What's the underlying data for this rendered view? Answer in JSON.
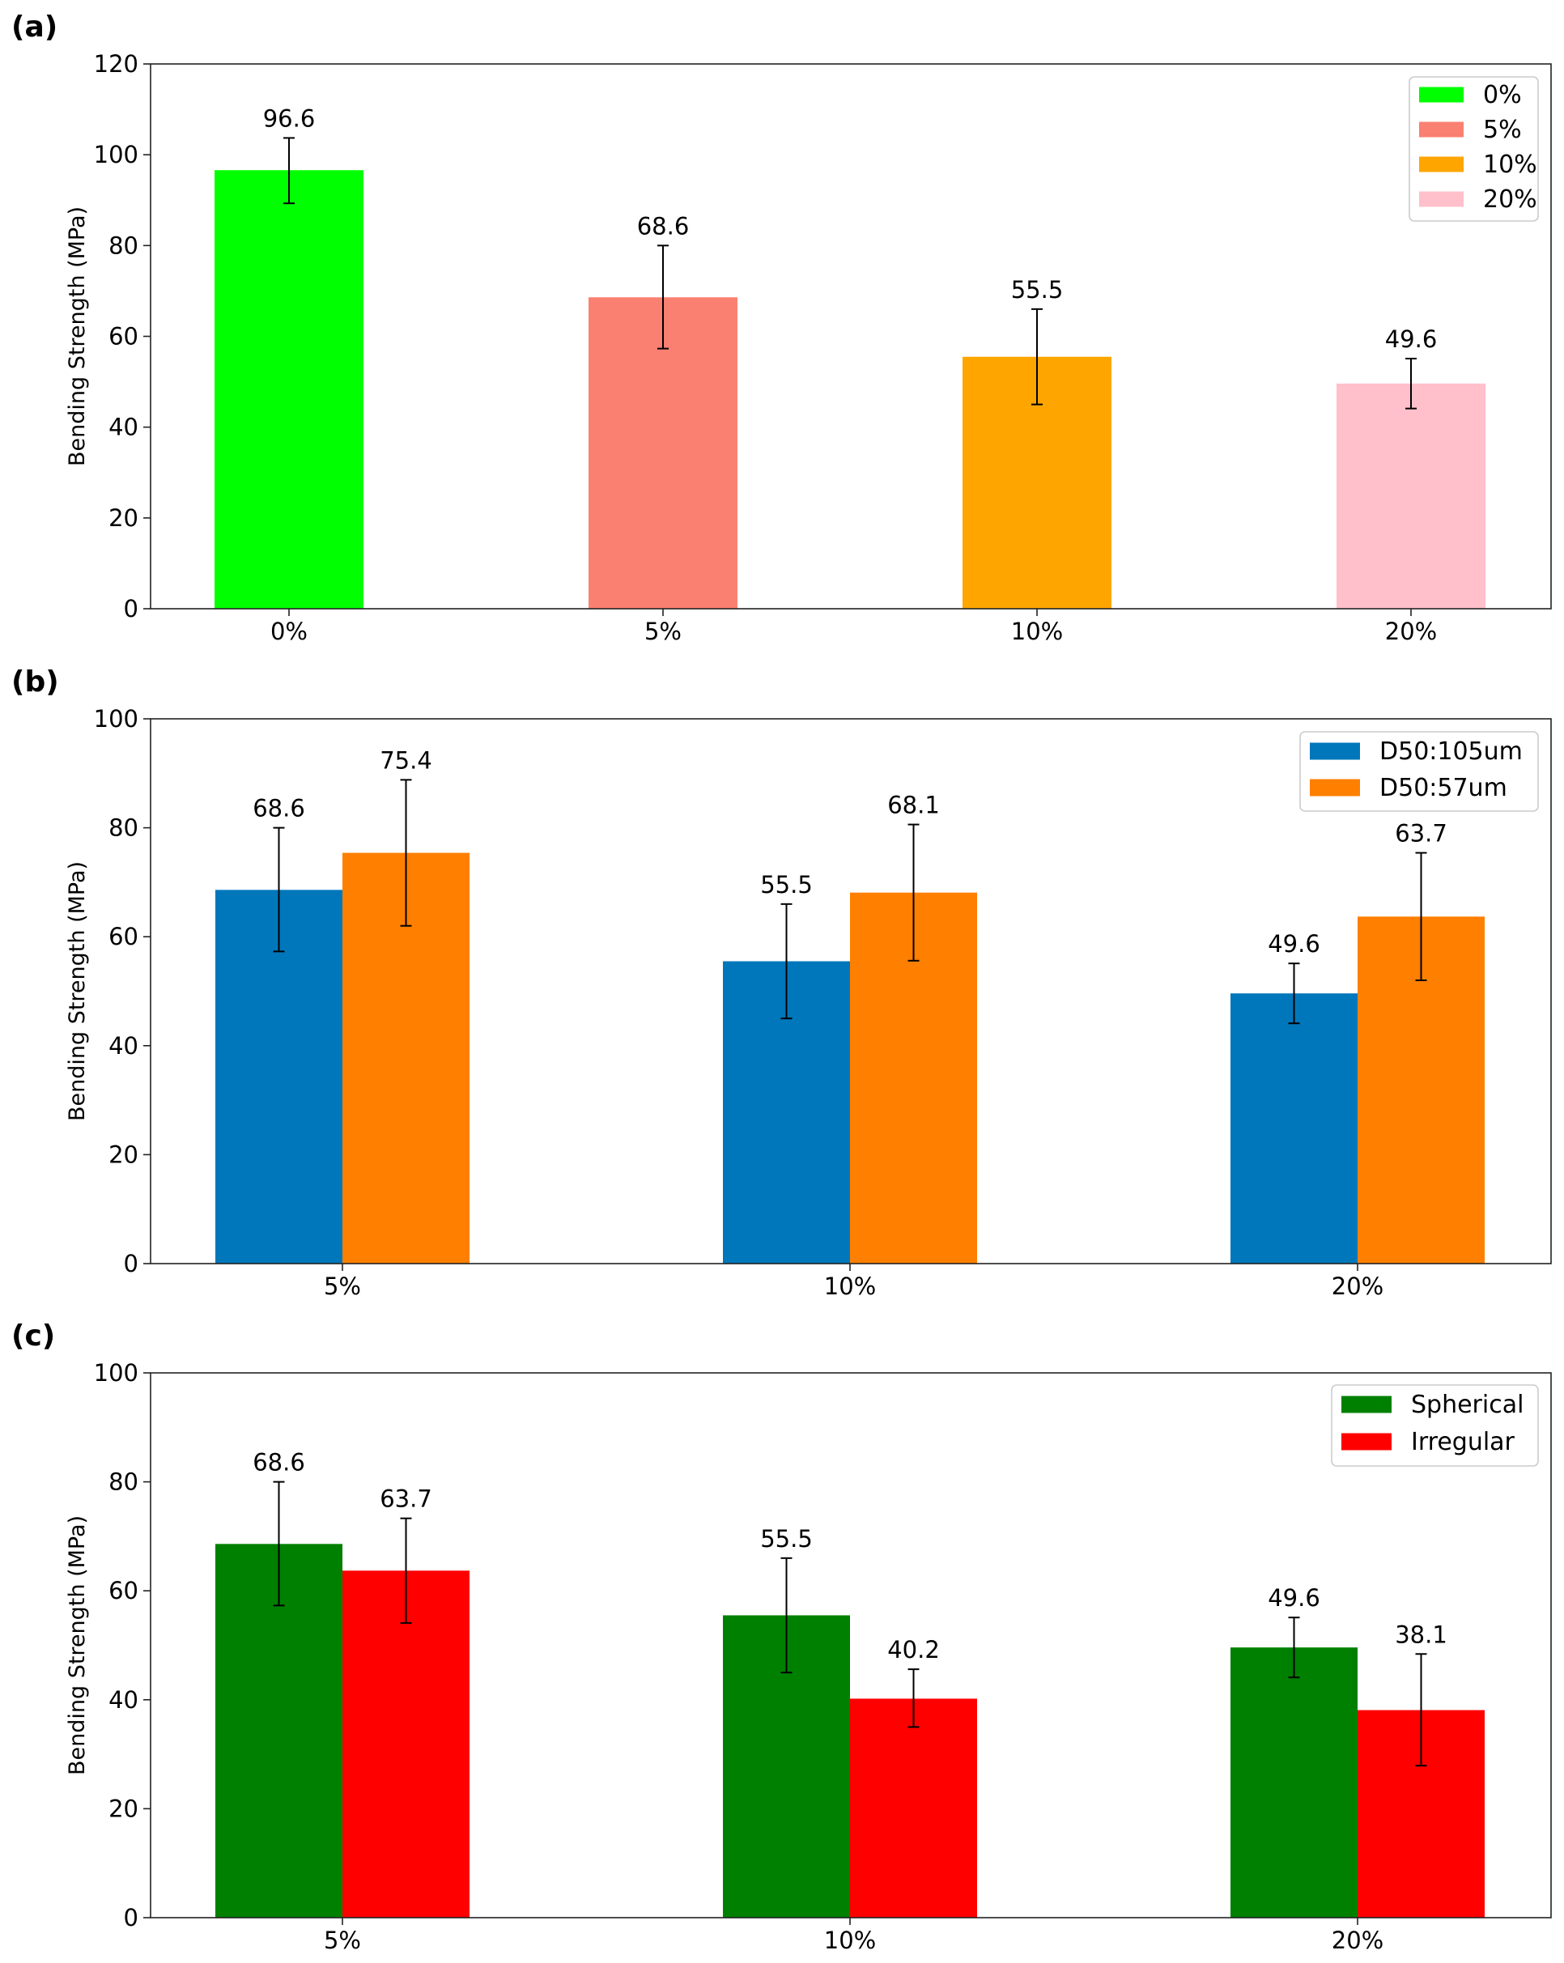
{
  "chart_data": [
    {
      "type": "bar",
      "panel": "(a)",
      "categories": [
        "0%",
        "5%",
        "10%",
        "20%"
      ],
      "series": [
        {
          "name": "0%",
          "color": "#00ff00",
          "values": [
            96.6,
            null,
            null,
            null
          ],
          "err_low": [
            89.3,
            null,
            null,
            null
          ],
          "err_high": [
            103.7,
            null,
            null,
            null
          ]
        },
        {
          "name": "5%",
          "color": "#fa8072",
          "values": [
            null,
            68.6,
            null,
            null
          ],
          "err_low": [
            null,
            57.3,
            null,
            null
          ],
          "err_high": [
            null,
            80.0,
            null,
            null
          ]
        },
        {
          "name": "10%",
          "color": "#ffa500",
          "values": [
            null,
            null,
            55.5,
            null
          ],
          "err_low": [
            null,
            null,
            45.0,
            null
          ],
          "err_high": [
            null,
            null,
            66.0,
            null
          ]
        },
        {
          "name": "20%",
          "color": "#ffc0cb",
          "values": [
            null,
            null,
            null,
            49.6
          ],
          "err_low": [
            null,
            null,
            null,
            44.1
          ],
          "err_high": [
            null,
            null,
            null,
            55.1
          ]
        }
      ],
      "data_labels": [
        "96.6",
        "68.6",
        "55.5",
        "49.6"
      ],
      "ylabel": "Bending Strength (MPa)",
      "xlabel": "",
      "ylim": [
        0,
        120
      ],
      "yticks": [
        "0",
        "20",
        "40",
        "60",
        "80",
        "100",
        "120"
      ],
      "legend": "top-right"
    },
    {
      "type": "bar",
      "panel": "(b)",
      "categories": [
        "5%",
        "10%",
        "20%"
      ],
      "series": [
        {
          "name": "D50:105um",
          "color": "#0077bb",
          "values": [
            68.6,
            55.5,
            49.6
          ],
          "err_low": [
            57.3,
            45.0,
            44.1
          ],
          "err_high": [
            80.0,
            66.0,
            55.1
          ]
        },
        {
          "name": "D50:57um",
          "color": "#ff7f00",
          "values": [
            75.4,
            68.1,
            63.7
          ],
          "err_low": [
            62.0,
            55.6,
            52.0
          ],
          "err_high": [
            88.8,
            80.6,
            75.4
          ]
        }
      ],
      "data_labels": [
        [
          "68.6",
          "55.5",
          "49.6"
        ],
        [
          "75.4",
          "68.1",
          "63.7"
        ]
      ],
      "ylabel": "Bending Strength (MPa)",
      "xlabel": "",
      "ylim": [
        0,
        100
      ],
      "yticks": [
        "0",
        "20",
        "40",
        "60",
        "80",
        "100"
      ],
      "legend": "top-right"
    },
    {
      "type": "bar",
      "panel": "(c)",
      "categories": [
        "5%",
        "10%",
        "20%"
      ],
      "series": [
        {
          "name": "Spherical",
          "color": "#008000",
          "values": [
            68.6,
            55.5,
            49.6
          ],
          "err_low": [
            57.3,
            45.0,
            44.1
          ],
          "err_high": [
            80.0,
            66.0,
            55.1
          ]
        },
        {
          "name": "Irregular",
          "color": "#ff0000",
          "values": [
            63.7,
            40.2,
            38.1
          ],
          "err_low": [
            54.1,
            35.0,
            27.9
          ],
          "err_high": [
            73.3,
            45.6,
            48.4
          ]
        }
      ],
      "data_labels": [
        [
          "68.6",
          "55.5",
          "49.6"
        ],
        [
          "63.7",
          "40.2",
          "38.1"
        ]
      ],
      "ylabel": "Bending Strength (MPa)",
      "xlabel": "",
      "ylim": [
        0,
        100
      ],
      "yticks": [
        "0",
        "20",
        "40",
        "60",
        "80",
        "100"
      ],
      "legend": "top-right"
    }
  ]
}
